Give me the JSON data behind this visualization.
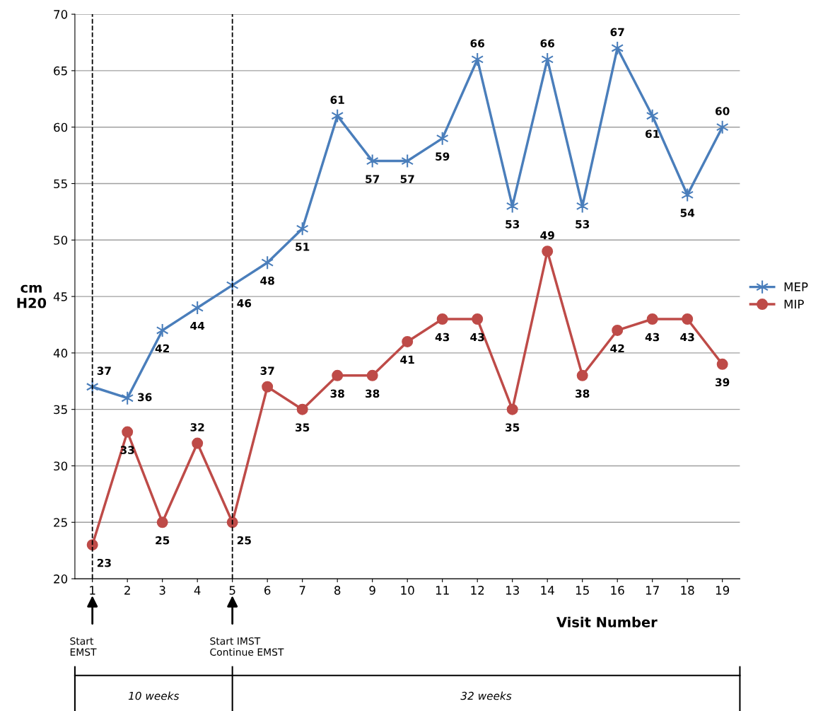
{
  "chart_data": {
    "type": "line",
    "xlabel": "Visit Number",
    "ylabel": "cm\nH20",
    "categories": [
      "1",
      "2",
      "3",
      "4",
      "5",
      "6",
      "7",
      "8",
      "9",
      "10",
      "11",
      "12",
      "13",
      "14",
      "15",
      "16",
      "17",
      "18",
      "19"
    ],
    "series": [
      {
        "name": "MEP",
        "color": "#4a7ebb",
        "marker": "cross",
        "values": [
          37,
          36,
          42,
          44,
          46,
          48,
          51,
          61,
          57,
          57,
          59,
          66,
          53,
          66,
          53,
          67,
          61,
          54,
          60
        ]
      },
      {
        "name": "MIP",
        "color": "#be4b48",
        "marker": "circle",
        "values": [
          23,
          33,
          25,
          32,
          25,
          37,
          35,
          38,
          38,
          41,
          43,
          43,
          35,
          49,
          38,
          42,
          43,
          43,
          39
        ]
      }
    ],
    "ylim": [
      20,
      70
    ],
    "yticks": [
      20,
      25,
      30,
      35,
      40,
      45,
      50,
      55,
      60,
      65,
      70
    ],
    "grid": "y",
    "legend": "right",
    "data_labels": true,
    "ref_lines": [
      {
        "axis": "x",
        "value": "1",
        "color": "#000000",
        "line_style": "dashed"
      },
      {
        "axis": "x",
        "value": "5",
        "color": "#000000",
        "line_style": "dashed"
      }
    ],
    "annotations": [
      "Start\nEMST",
      "Start IMST\nContinue EMST",
      "10 weeks",
      "32 weeks"
    ]
  }
}
